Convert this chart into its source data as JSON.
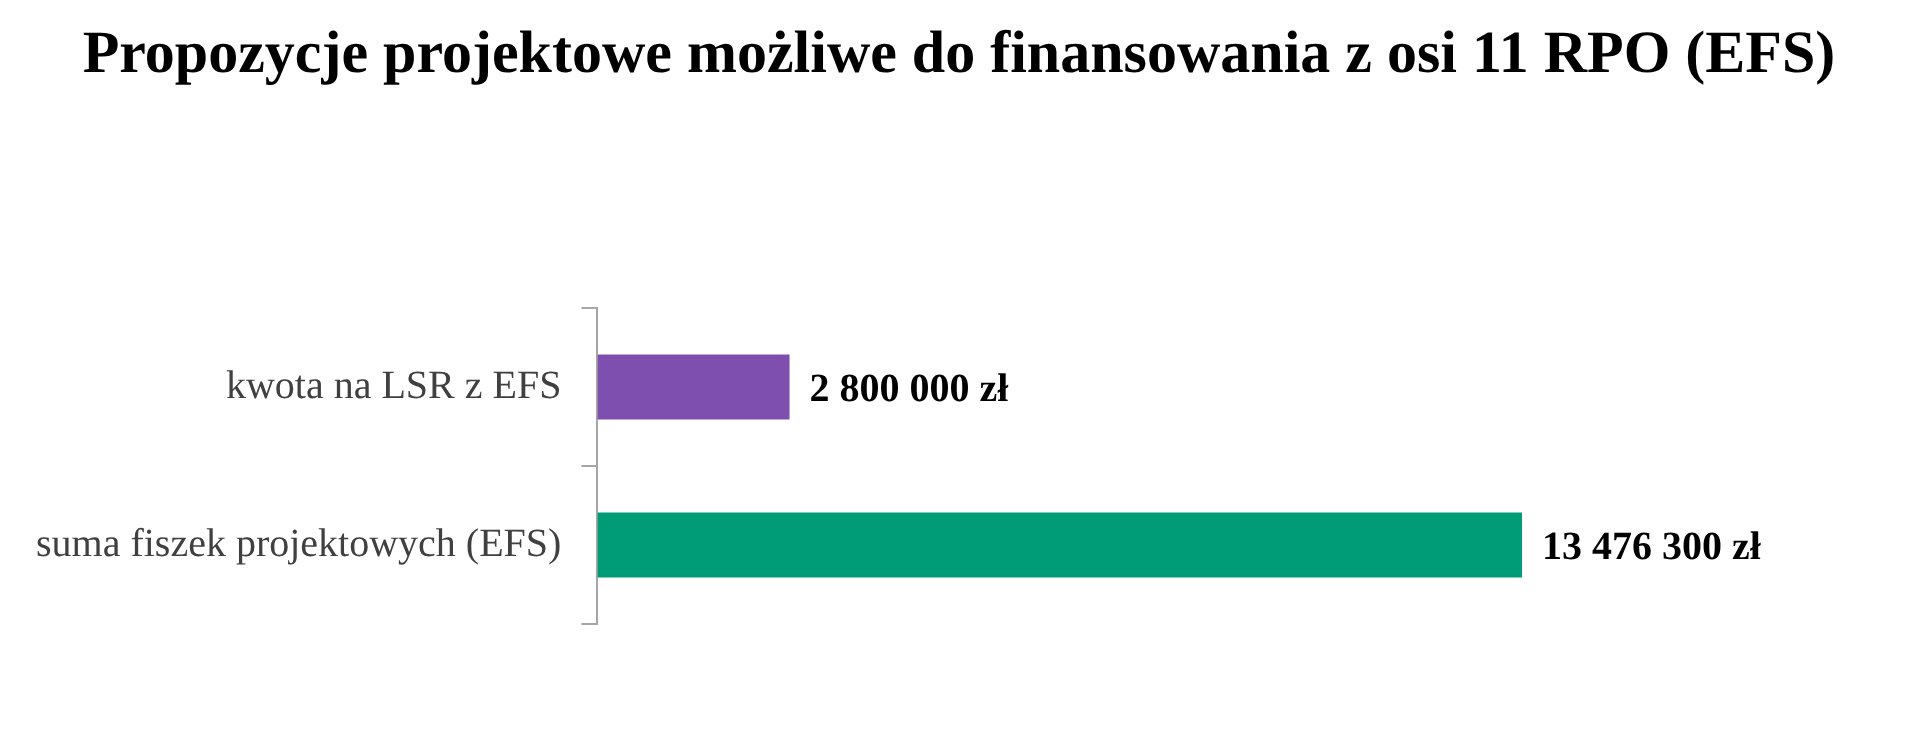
{
  "chart_data": {
    "type": "bar",
    "orientation": "horizontal",
    "title": "Propozycje projektowe możliwe do finansowania z osi 11 RPO (EFS)",
    "categories": [
      "kwota na LSR z EFS",
      "suma fiszek projektowych (EFS)"
    ],
    "values": [
      2800000,
      13476300
    ],
    "colors": [
      "#7f4fb0",
      "#009b77"
    ],
    "value_labels": [
      "2 800 000 zł",
      "13 476 300 zł"
    ]
  }
}
